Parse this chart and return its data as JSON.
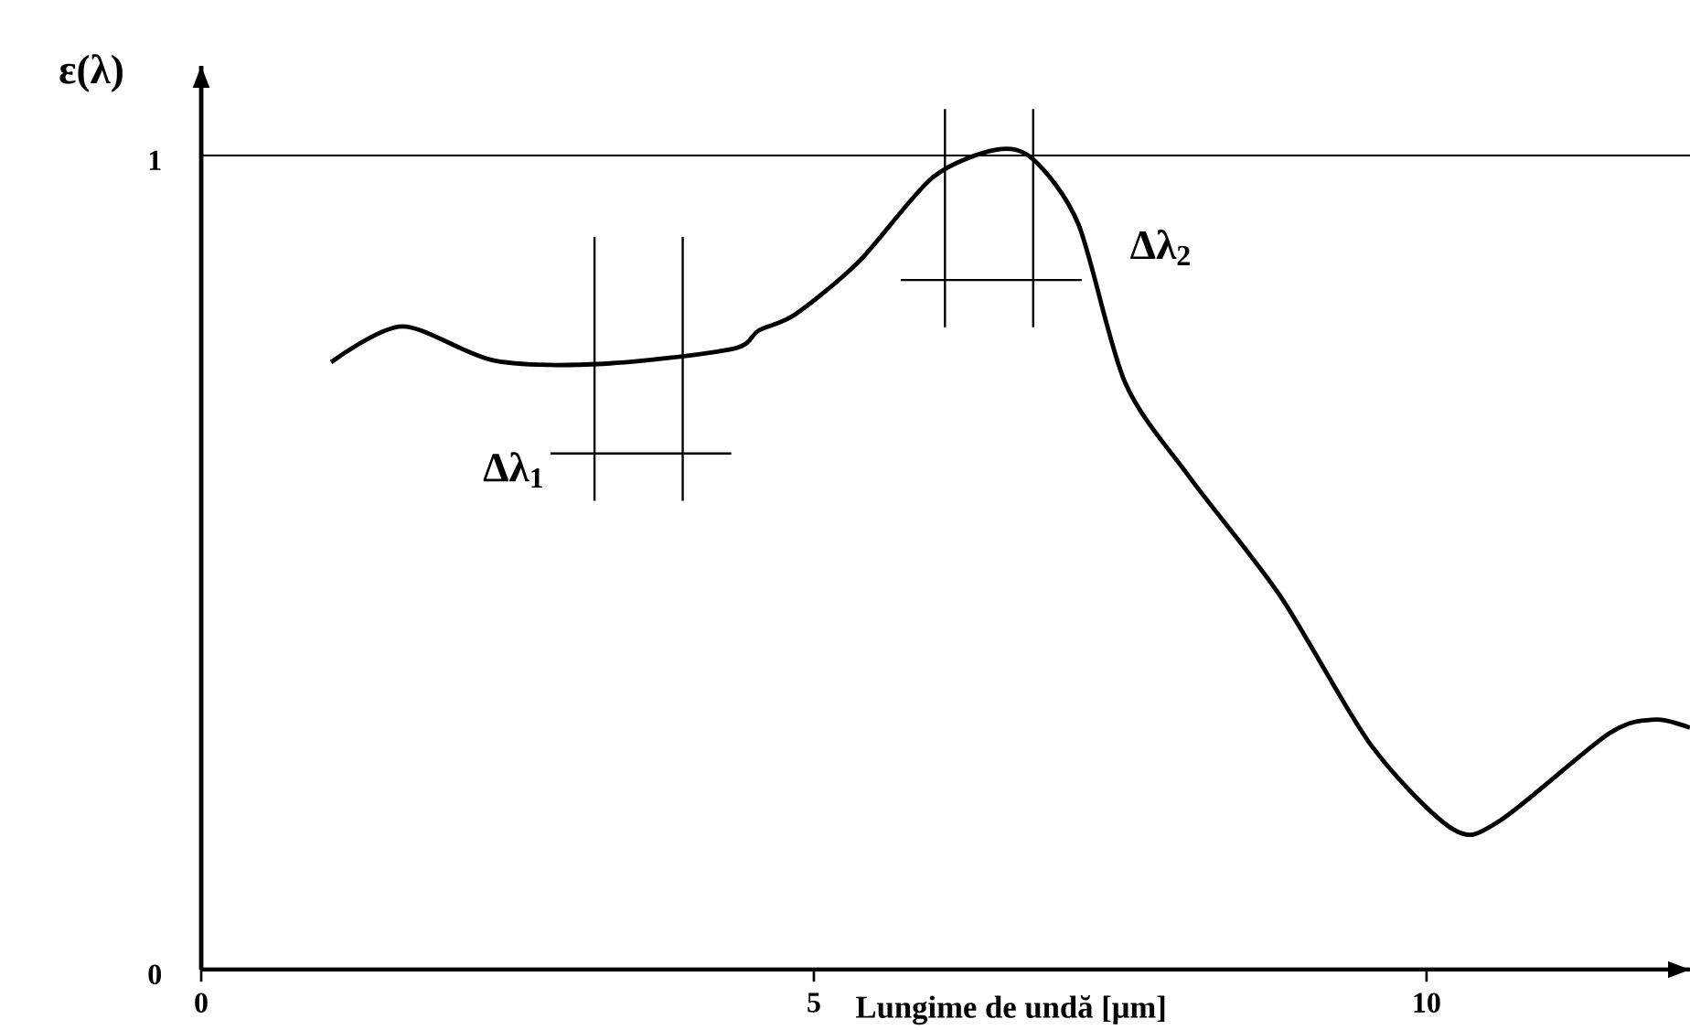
{
  "chart_data": {
    "type": "line",
    "xlabel": "Lungime de undă [μm]",
    "ylabel": "ε(λ)",
    "x": [
      1.06,
      1.64,
      2.39,
      3.28,
      4.33,
      4.55,
      4.85,
      5.37,
      5.97,
      6.49,
      6.79,
      7.16,
      7.54,
      8.06,
      8.81,
      9.55,
      10.22,
      10.6,
      11.49,
      11.87,
      12.15
    ],
    "series": [
      {
        "color": "#000000",
        "values": [
          0.746,
          0.79,
          0.748,
          0.744,
          0.762,
          0.785,
          0.805,
          0.87,
          0.973,
          1.007,
          0.995,
          0.915,
          0.721,
          0.606,
          0.458,
          0.275,
          0.172,
          0.183,
          0.29,
          0.307,
          0.297
        ]
      }
    ],
    "xlim": [
      0,
      12.15
    ],
    "ylim": [
      0,
      1.11
    ],
    "xticks": [
      0,
      5,
      10
    ],
    "yticks": [
      0,
      1
    ],
    "ref_lines": [
      {
        "axis": "y",
        "value": 1
      }
    ],
    "annotations": [
      "Δλ$_{1}$",
      "Δλ$_{2}$"
    ]
  }
}
